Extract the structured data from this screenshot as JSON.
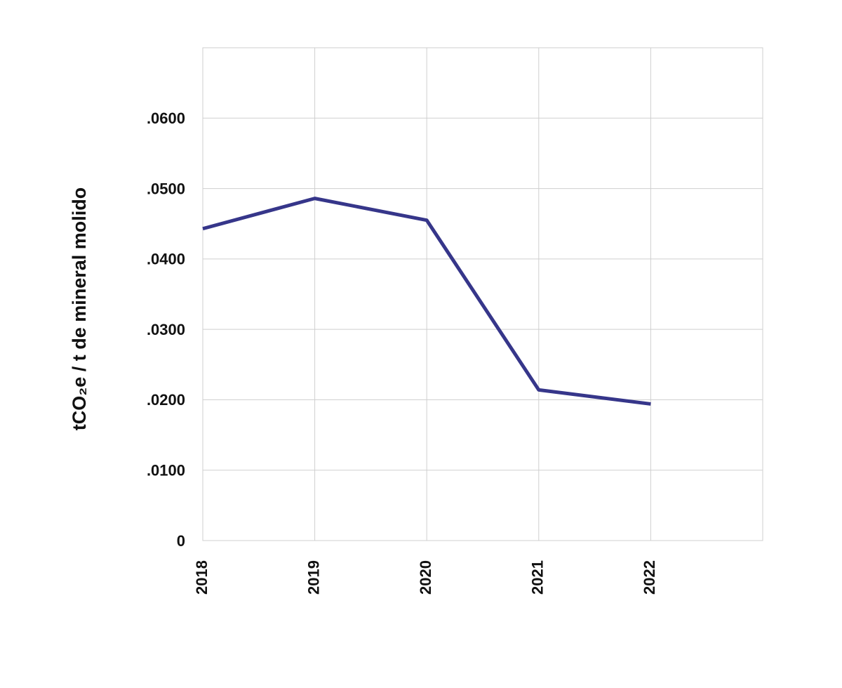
{
  "chart_data": {
    "type": "line",
    "y_label": "tCO₂e / t de mineral molido",
    "x": [
      2018,
      2019,
      2020,
      2021,
      2022
    ],
    "series": [
      {
        "color": "#36368a",
        "values": [
          0.0443,
          0.0486,
          0.0455,
          0.0214,
          0.0194
        ]
      }
    ],
    "xlim": [
      2018,
      2023
    ],
    "xticks": [
      2018,
      2019,
      2020,
      2021,
      2022
    ],
    "ylim": [
      0,
      0.07
    ],
    "yticks": [
      0,
      {
        "value": 0.01,
        "label": ".0100"
      },
      {
        "value": 0.02,
        "label": ".0200"
      },
      {
        "value": 0.03,
        "label": ".0300"
      },
      {
        "value": 0.04,
        "label": ".0400"
      },
      {
        "value": 0.05,
        "label": ".0500"
      },
      {
        "value": 0.06,
        "label": ".0600"
      }
    ],
    "grid": true
  }
}
